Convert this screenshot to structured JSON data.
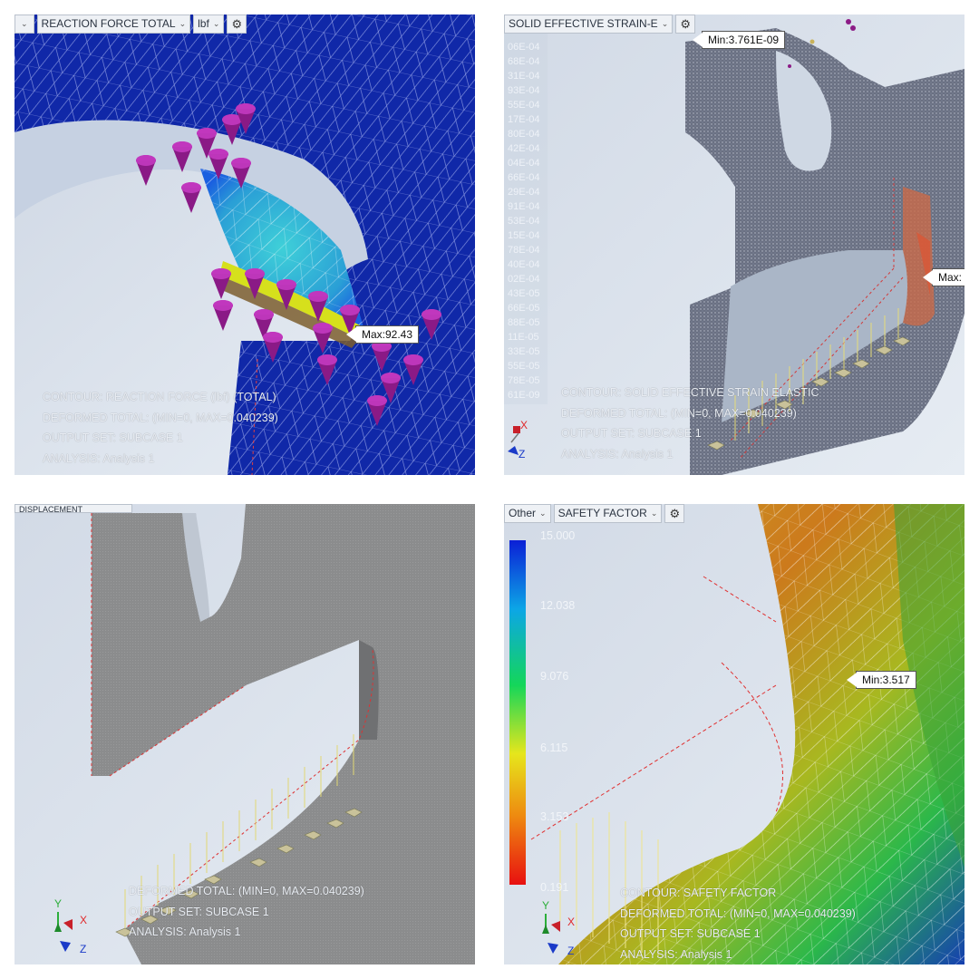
{
  "panels": {
    "reaction": {
      "toolbar": {
        "type_label": "REACTION FORCE TOTAL",
        "unit_label": "lbf"
      },
      "max_callout": "Max:92.43",
      "info": [
        "CONTOUR: REACTION FORCE (lbf) (TOTAL)",
        "DEFORMED TOTAL: (MIN=0, MAX=0.040239)",
        "OUTPUT SET: SUBCASE 1",
        "ANALYSIS: Analysis 1"
      ]
    },
    "strain": {
      "toolbar": {
        "type_label": "SOLID EFFECTIVE STRAIN-E"
      },
      "min_callout": "Min:3.761E-09",
      "max_callout": "Max:",
      "scale_ticks": [
        "06E-04",
        "68E-04",
        "31E-04",
        "93E-04",
        "55E-04",
        "17E-04",
        "80E-04",
        "42E-04",
        "04E-04",
        "66E-04",
        "29E-04",
        "91E-04",
        "53E-04",
        "15E-04",
        "78E-04",
        "40E-04",
        "02E-04",
        "43E-05",
        "66E-05",
        "88E-05",
        "11E-05",
        "33E-05",
        "55E-05",
        "78E-05",
        "61E-09"
      ],
      "info": [
        "CONTOUR: SOLID EFFECTIVE STRAIN ELASTIC",
        "DEFORMED TOTAL: (MIN=0, MAX=0.040239)",
        "OUTPUT SET: SUBCASE 1",
        "ANALYSIS: Analysis 1"
      ]
    },
    "displacement": {
      "toolbar": {
        "type_label": "DISPLACEMENT"
      },
      "info": [
        "DEFORMED TOTAL: (MIN=0, MAX=0.040239)",
        "OUTPUT SET: SUBCASE 1",
        "ANALYSIS: Analysis 1"
      ]
    },
    "safety": {
      "toolbar": {
        "category_label": "Other",
        "type_label": "SAFETY FACTOR"
      },
      "min_callout": "Min:3.517",
      "scale_ticks": [
        "15.000",
        "12.038",
        "9.076",
        "6.115",
        "3.153",
        "0.191"
      ],
      "info": [
        "CONTOUR: SAFETY FACTOR",
        "DEFORMED TOTAL: (MIN=0, MAX=0.040239)",
        "OUTPUT SET: SUBCASE 1",
        "ANALYSIS: Analysis 1"
      ]
    }
  },
  "triad": {
    "x": "X",
    "y": "Y",
    "z": "Z"
  },
  "icons": {
    "gear": "gear-icon",
    "chevron": "chevron-down-icon",
    "triad": "coordinate-triad-icon"
  },
  "colors": {
    "mesh_blue": "#0d2a9a",
    "background": "#c9d3e0",
    "constraint": "#9a1a9a",
    "part_gray": "#8a8c8e"
  }
}
